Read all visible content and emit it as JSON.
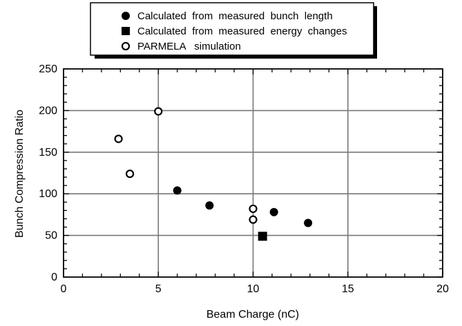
{
  "chart_data": {
    "type": "scatter",
    "xlabel": "Beam Charge (nC)",
    "ylabel": "Bunch Compression Ratio",
    "xlim": [
      0,
      20
    ],
    "ylim": [
      0,
      250
    ],
    "x_ticks": [
      0,
      5,
      10,
      15,
      20
    ],
    "y_ticks": [
      0,
      50,
      100,
      150,
      200,
      250
    ],
    "grid": true,
    "legend_position": "top-center",
    "series": [
      {
        "name": "Calculated  from  measured  bunch  length",
        "marker": "filled-circle",
        "color": "#000000",
        "points": [
          [
            6.0,
            104
          ],
          [
            7.7,
            86
          ],
          [
            11.1,
            78
          ],
          [
            12.9,
            65
          ]
        ]
      },
      {
        "name": "Calculated  from  measured  energy  changes",
        "marker": "filled-square",
        "color": "#000000",
        "points": [
          [
            10.5,
            49
          ]
        ]
      },
      {
        "name": "PARMELA   simulation",
        "marker": "open-circle",
        "color": "#000000",
        "points": [
          [
            2.9,
            166
          ],
          [
            3.5,
            124
          ],
          [
            5.0,
            199
          ],
          [
            10.0,
            82
          ],
          [
            10.0,
            69
          ]
        ]
      }
    ]
  }
}
